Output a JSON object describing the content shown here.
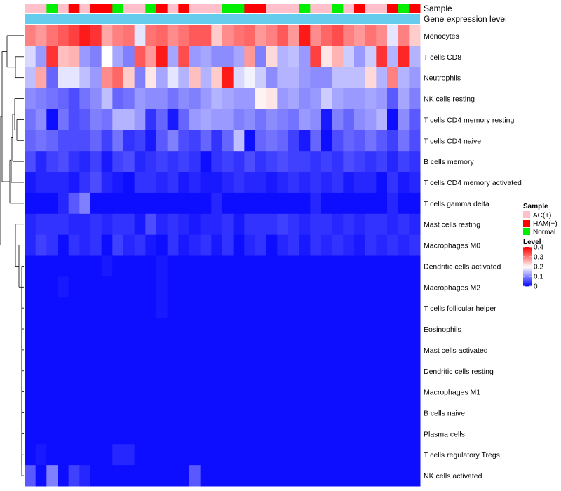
{
  "chart_data": {
    "type": "heatmap",
    "title": "",
    "annotation_labels": [
      "Sample",
      "Gene expression level"
    ],
    "row_labels": [
      "Monocytes",
      "T cells CD8",
      "Neutrophils",
      "NK cells resting",
      "T cells CD4 memory resting",
      "T cells CD4 naive",
      "B cells memory",
      "T cells CD4 memory activated",
      "T cells gamma delta",
      "Mast cells resting",
      "Macrophages M0",
      "Dendritic cells activated",
      "Macrophages M2",
      "T cells follicular helper",
      "Eosinophils",
      "Mast cells activated",
      "Dendritic cells resting",
      "Macrophages M1",
      "B cells naive",
      "Plasma cells",
      "T cells regulatory  Tregs",
      "NK cells activated"
    ],
    "sample_groups": [
      "AC(+)",
      "AC(+)",
      "Normal",
      "AC(+)",
      "HAM(+)",
      "AC(+)",
      "HAM(+)",
      "HAM(+)",
      "Normal",
      "AC(+)",
      "AC(+)",
      "Normal",
      "HAM(+)",
      "AC(+)",
      "HAM(+)",
      "AC(+)",
      "AC(+)",
      "AC(+)",
      "Normal",
      "Normal",
      "HAM(+)",
      "HAM(+)",
      "AC(+)",
      "AC(+)",
      "AC(+)",
      "Normal",
      "AC(+)",
      "AC(+)",
      "Normal",
      "AC(+)",
      "HAM(+)",
      "AC(+)",
      "AC(+)",
      "HAM(+)",
      "Normal",
      "HAM(+)"
    ],
    "values": [
      [
        0.3,
        0.28,
        0.31,
        0.33,
        0.35,
        0.38,
        0.36,
        0.27,
        0.3,
        0.31,
        0.18,
        0.31,
        0.32,
        0.29,
        0.31,
        0.33,
        0.33,
        0.24,
        0.29,
        0.31,
        0.32,
        0.28,
        0.3,
        0.33,
        0.28,
        0.38,
        0.29,
        0.32,
        0.34,
        0.3,
        0.28,
        0.31,
        0.29,
        0.18,
        0.3,
        0.24
      ],
      [
        0.17,
        0.12,
        0.36,
        0.25,
        0.26,
        0.12,
        0.1,
        0.2,
        0.13,
        0.1,
        0.33,
        0.28,
        0.38,
        0.13,
        0.34,
        0.12,
        0.13,
        0.11,
        0.11,
        0.13,
        0.28,
        0.1,
        0.23,
        0.14,
        0.15,
        0.12,
        0.35,
        0.22,
        0.26,
        0.16,
        0.12,
        0.16,
        0.36,
        0.14,
        0.37,
        0.14
      ],
      [
        0.15,
        0.27,
        0.08,
        0.18,
        0.18,
        0.15,
        0.12,
        0.29,
        0.32,
        0.24,
        0.1,
        0.22,
        0.13,
        0.18,
        0.14,
        0.25,
        0.14,
        0.24,
        0.38,
        0.17,
        0.19,
        0.16,
        0.11,
        0.14,
        0.14,
        0.12,
        0.11,
        0.11,
        0.15,
        0.15,
        0.15,
        0.23,
        0.14,
        0.3,
        0.14,
        0.12
      ],
      [
        0.11,
        0.1,
        0.09,
        0.08,
        0.06,
        0.09,
        0.11,
        0.15,
        0.08,
        0.09,
        0.12,
        0.11,
        0.11,
        0.09,
        0.11,
        0.1,
        0.12,
        0.14,
        0.13,
        0.12,
        0.12,
        0.21,
        0.22,
        0.12,
        0.13,
        0.11,
        0.12,
        0.16,
        0.13,
        0.12,
        0.12,
        0.13,
        0.12,
        0.07,
        0.13,
        0.1
      ],
      [
        0.09,
        0.11,
        0.01,
        0.09,
        0.06,
        0.07,
        0.1,
        0.09,
        0.14,
        0.14,
        0.12,
        0.04,
        0.08,
        0.02,
        0.08,
        0.12,
        0.13,
        0.12,
        0.12,
        0.1,
        0.11,
        0.09,
        0.11,
        0.1,
        0.09,
        0.12,
        0.11,
        0.02,
        0.1,
        0.08,
        0.11,
        0.12,
        0.14,
        0.01,
        0.11,
        0.07
      ],
      [
        0.08,
        0.09,
        0.08,
        0.06,
        0.06,
        0.06,
        0.08,
        0.05,
        0.09,
        0.04,
        0.05,
        0.02,
        0.07,
        0.1,
        0.06,
        0.05,
        0.08,
        0.04,
        0.08,
        0.15,
        0.01,
        0.08,
        0.09,
        0.08,
        0.05,
        0.02,
        0.08,
        0.01,
        0.06,
        0.08,
        0.07,
        0.09,
        0.07,
        0.05,
        0.09,
        0.06
      ],
      [
        0.06,
        0.03,
        0.05,
        0.06,
        0.04,
        0.03,
        0.05,
        0.02,
        0.05,
        0.06,
        0.03,
        0.04,
        0.05,
        0.04,
        0.05,
        0.04,
        0.01,
        0.04,
        0.05,
        0.04,
        0.06,
        0.04,
        0.05,
        0.06,
        0.05,
        0.05,
        0.04,
        0.05,
        0.04,
        0.06,
        0.05,
        0.04,
        0.05,
        0.03,
        0.05,
        0.04
      ],
      [
        0.02,
        0.03,
        0.03,
        0.03,
        0.02,
        0.04,
        0.06,
        0.03,
        0.02,
        0.01,
        0.04,
        0.04,
        0.03,
        0.04,
        0.02,
        0.03,
        0.02,
        0.02,
        0.03,
        0.04,
        0.03,
        0.03,
        0.02,
        0.03,
        0.04,
        0.03,
        0.04,
        0.03,
        0.04,
        0.02,
        0.03,
        0.03,
        0.01,
        0.04,
        0.02,
        0.03
      ],
      [
        0.01,
        0.01,
        0.01,
        0.03,
        0.07,
        0.1,
        0.01,
        0.01,
        0.01,
        0.01,
        0.01,
        0.01,
        0.01,
        0.01,
        0.01,
        0.01,
        0.01,
        0.03,
        0.01,
        0.01,
        0.01,
        0.01,
        0.01,
        0.01,
        0.01,
        0.01,
        0.03,
        0.01,
        0.01,
        0.01,
        0.01,
        0.01,
        0.01,
        0.03,
        0.01,
        0.01
      ],
      [
        0.03,
        0.04,
        0.04,
        0.04,
        0.03,
        0.03,
        0.04,
        0.03,
        0.04,
        0.04,
        0.02,
        0.06,
        0.03,
        0.04,
        0.03,
        0.02,
        0.03,
        0.03,
        0.04,
        0.02,
        0.04,
        0.04,
        0.04,
        0.05,
        0.04,
        0.03,
        0.04,
        0.04,
        0.03,
        0.04,
        0.03,
        0.04,
        0.04,
        0.03,
        0.04,
        0.03
      ],
      [
        0.03,
        0.05,
        0.04,
        0.01,
        0.04,
        0.03,
        0.04,
        0.01,
        0.05,
        0.03,
        0.04,
        0.02,
        0.01,
        0.04,
        0.02,
        0.03,
        0.04,
        0.02,
        0.04,
        0.01,
        0.03,
        0.04,
        0.01,
        0.03,
        0.04,
        0.02,
        0.04,
        0.03,
        0.04,
        0.03,
        0.02,
        0.04,
        0.03,
        0.04,
        0.03,
        0.04
      ],
      [
        0.01,
        0.01,
        0.01,
        0.01,
        0.01,
        0.01,
        0.01,
        0.02,
        0.01,
        0.01,
        0.01,
        0.01,
        0.02,
        0.01,
        0.01,
        0.01,
        0.01,
        0.01,
        0.01,
        0.01,
        0.01,
        0.01,
        0.01,
        0.01,
        0.01,
        0.01,
        0.01,
        0.01,
        0.01,
        0.01,
        0.01,
        0.01,
        0.01,
        0.01,
        0.01,
        0.01
      ],
      [
        0.01,
        0.01,
        0.01,
        0.02,
        0.01,
        0.01,
        0.01,
        0.01,
        0.01,
        0.01,
        0.01,
        0.01,
        0.02,
        0.01,
        0.01,
        0.01,
        0.01,
        0.01,
        0.01,
        0.01,
        0.01,
        0.01,
        0.01,
        0.01,
        0.01,
        0.01,
        0.01,
        0.01,
        0.01,
        0.01,
        0.01,
        0.01,
        0.01,
        0.01,
        0.01,
        0.01
      ],
      [
        0.01,
        0.01,
        0.01,
        0.01,
        0.01,
        0.01,
        0.01,
        0.01,
        0.01,
        0.01,
        0.01,
        0.01,
        0.02,
        0.01,
        0.01,
        0.01,
        0.01,
        0.01,
        0.01,
        0.01,
        0.01,
        0.01,
        0.01,
        0.01,
        0.01,
        0.01,
        0.01,
        0.01,
        0.01,
        0.01,
        0.01,
        0.01,
        0.01,
        0.01,
        0.01,
        0.01
      ],
      [
        0.01,
        0.01,
        0.01,
        0.01,
        0.01,
        0.01,
        0.01,
        0.01,
        0.01,
        0.01,
        0.01,
        0.01,
        0.01,
        0.01,
        0.01,
        0.01,
        0.01,
        0.01,
        0.01,
        0.01,
        0.01,
        0.01,
        0.01,
        0.01,
        0.01,
        0.01,
        0.01,
        0.01,
        0.01,
        0.01,
        0.01,
        0.01,
        0.01,
        0.01,
        0.01,
        0.01
      ],
      [
        0.01,
        0.01,
        0.01,
        0.01,
        0.01,
        0.01,
        0.01,
        0.01,
        0.01,
        0.01,
        0.01,
        0.01,
        0.01,
        0.01,
        0.01,
        0.01,
        0.01,
        0.01,
        0.01,
        0.01,
        0.01,
        0.01,
        0.01,
        0.01,
        0.01,
        0.01,
        0.01,
        0.01,
        0.01,
        0.01,
        0.01,
        0.01,
        0.01,
        0.01,
        0.01,
        0.01
      ],
      [
        0.01,
        0.01,
        0.01,
        0.01,
        0.01,
        0.01,
        0.01,
        0.01,
        0.01,
        0.01,
        0.01,
        0.01,
        0.01,
        0.01,
        0.01,
        0.01,
        0.01,
        0.01,
        0.01,
        0.01,
        0.01,
        0.01,
        0.01,
        0.01,
        0.01,
        0.01,
        0.01,
        0.01,
        0.01,
        0.01,
        0.01,
        0.01,
        0.01,
        0.01,
        0.01,
        0.01
      ],
      [
        0.01,
        0.01,
        0.01,
        0.01,
        0.01,
        0.01,
        0.01,
        0.01,
        0.01,
        0.01,
        0.01,
        0.01,
        0.01,
        0.01,
        0.01,
        0.01,
        0.01,
        0.01,
        0.01,
        0.01,
        0.01,
        0.01,
        0.01,
        0.01,
        0.01,
        0.01,
        0.01,
        0.01,
        0.01,
        0.01,
        0.01,
        0.01,
        0.01,
        0.01,
        0.01,
        0.01
      ],
      [
        0.01,
        0.01,
        0.01,
        0.01,
        0.01,
        0.01,
        0.01,
        0.01,
        0.01,
        0.01,
        0.01,
        0.01,
        0.01,
        0.01,
        0.01,
        0.01,
        0.01,
        0.01,
        0.01,
        0.01,
        0.01,
        0.01,
        0.01,
        0.01,
        0.01,
        0.01,
        0.01,
        0.01,
        0.01,
        0.01,
        0.01,
        0.01,
        0.01,
        0.01,
        0.01,
        0.01
      ],
      [
        0.01,
        0.01,
        0.01,
        0.01,
        0.01,
        0.01,
        0.01,
        0.01,
        0.01,
        0.01,
        0.01,
        0.01,
        0.01,
        0.01,
        0.01,
        0.01,
        0.01,
        0.01,
        0.01,
        0.01,
        0.01,
        0.01,
        0.01,
        0.01,
        0.01,
        0.01,
        0.01,
        0.01,
        0.01,
        0.01,
        0.01,
        0.01,
        0.01,
        0.01,
        0.01,
        0.01
      ],
      [
        0.01,
        0.02,
        0.01,
        0.01,
        0.01,
        0.01,
        0.01,
        0.01,
        0.03,
        0.03,
        0.01,
        0.01,
        0.01,
        0.01,
        0.01,
        0.01,
        0.01,
        0.01,
        0.01,
        0.01,
        0.01,
        0.01,
        0.01,
        0.01,
        0.01,
        0.01,
        0.01,
        0.01,
        0.01,
        0.01,
        0.01,
        0.01,
        0.01,
        0.01,
        0.01,
        0.01
      ],
      [
        0.07,
        0.01,
        0.1,
        0.01,
        0.05,
        0.03,
        0.01,
        0.01,
        0.01,
        0.01,
        0.01,
        0.01,
        0.01,
        0.01,
        0.01,
        0.07,
        0.01,
        0.01,
        0.01,
        0.01,
        0.01,
        0.01,
        0.01,
        0.01,
        0.01,
        0.01,
        0.01,
        0.01,
        0.01,
        0.01,
        0.01,
        0.01,
        0.01,
        0.01,
        0.01,
        0.01
      ]
    ],
    "legend": {
      "sample_title": "Sample",
      "sample_items": [
        {
          "label": "AC(+)",
          "color": "#ffc0cb"
        },
        {
          "label": "HAM(+)",
          "color": "#ff0000"
        },
        {
          "label": "Normal",
          "color": "#00ee00"
        }
      ],
      "level_title": "Level",
      "level_ticks": [
        0.4,
        0.3,
        0.2,
        0.1,
        0
      ],
      "level_range": [
        0,
        0.4
      ]
    },
    "expression_level_color": "#66ccee",
    "colors": {
      "low": "#0000ff",
      "mid": "#ffffff",
      "high": "#ff0000"
    }
  }
}
